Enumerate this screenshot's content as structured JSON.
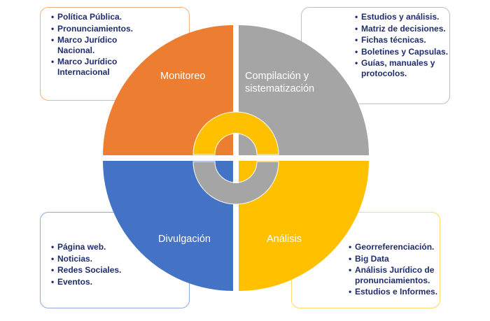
{
  "colors": {
    "monitoreo": "#ed7d31",
    "compilacion": "#a5a5a5",
    "divulgacion": "#4472c4",
    "analisis": "#ffc000",
    "text": "#1f2d6b"
  },
  "quadrants": {
    "monitoreo": {
      "label": "Monitoreo",
      "items": [
        "Política Pública.",
        "Pronunciamientos.",
        "Marco Jurídico Nacional.",
        "Marco Jurídico Internacional"
      ]
    },
    "compilacion": {
      "label_line1": "Compilación y",
      "label_line2": "sistematización",
      "items": [
        "Estudios y análisis.",
        "Matriz de decisiones.",
        "Fichas técnicas.",
        "Boletines y Capsulas.",
        "Guías, manuales y protocolos."
      ]
    },
    "divulgacion": {
      "label": "Divulgación",
      "items": [
        "Página web.",
        "Noticias.",
        "Redes Sociales.",
        "Eventos."
      ]
    },
    "analisis": {
      "label": "Análisis",
      "items": [
        "Georreferenciación.",
        "Big Data",
        "Análisis Jurídico de pronunciamientos.",
        "Estudios e Informes."
      ]
    }
  }
}
